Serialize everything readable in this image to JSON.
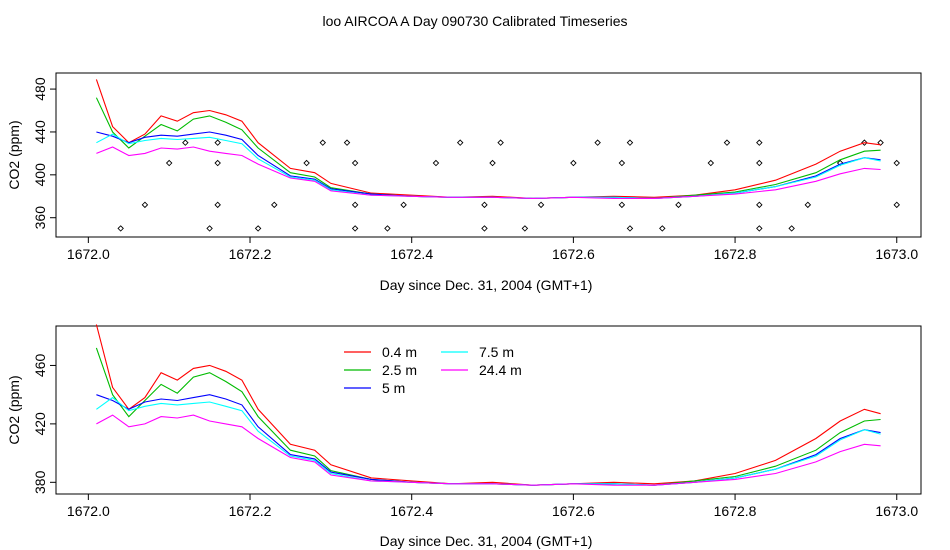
{
  "chart_data": [
    {
      "type": "line",
      "title": "loo AIRCOA A  Day 090730  Calibrated Timeseries",
      "xlabel": "Day since Dec. 31, 2004 (GMT+1)",
      "ylabel": "CO2 (ppm)",
      "xlim": [
        1671.96,
        1673.03
      ],
      "ylim": [
        342,
        495
      ],
      "xticks": [
        1672.0,
        1672.2,
        1672.4,
        1672.6,
        1672.8,
        1673.0
      ],
      "xtick_labels": [
        "1672.0",
        "1672.2",
        "1672.4",
        "1672.6",
        "1672.8",
        "1673.0"
      ],
      "yticks": [
        360,
        400,
        440,
        480
      ],
      "ytick_labels": [
        "360",
        "400",
        "440",
        "480"
      ],
      "colors": {
        "0.4 m": "#ff0000",
        "2.5 m": "#00bb00",
        "5 m": "#0000ff",
        "7.5 m": "#00ffff",
        "24.4 m": "#ff00ff"
      },
      "x": [
        1672.01,
        1672.03,
        1672.05,
        1672.07,
        1672.09,
        1672.11,
        1672.13,
        1672.15,
        1672.17,
        1672.19,
        1672.21,
        1672.25,
        1672.28,
        1672.3,
        1672.35,
        1672.4,
        1672.45,
        1672.5,
        1672.55,
        1672.6,
        1672.65,
        1672.7,
        1672.75,
        1672.8,
        1672.85,
        1672.9,
        1672.93,
        1672.96,
        1672.98
      ],
      "series": [
        {
          "name": "0.4 m",
          "color": "#ff0000",
          "values": [
            489,
            445,
            430,
            438,
            455,
            450,
            458,
            460,
            456,
            450,
            430,
            406,
            402,
            392,
            383,
            381,
            379,
            380,
            378,
            379,
            380,
            379,
            381,
            386,
            395,
            410,
            422,
            430,
            428
          ]
        },
        {
          "name": "2.5 m",
          "color": "#00bb00",
          "values": [
            472,
            440,
            425,
            436,
            447,
            441,
            452,
            455,
            449,
            442,
            425,
            402,
            398,
            388,
            382,
            380,
            379,
            379,
            378,
            379,
            379,
            378,
            381,
            384,
            391,
            402,
            414,
            422,
            423
          ]
        },
        {
          "name": "5 m",
          "color": "#0000ff",
          "values": [
            440,
            436,
            430,
            435,
            437,
            436,
            438,
            440,
            437,
            433,
            418,
            399,
            396,
            387,
            382,
            380,
            379,
            379,
            378,
            379,
            379,
            378,
            380,
            383,
            389,
            399,
            410,
            416,
            414
          ]
        },
        {
          "name": "7.5 m",
          "color": "#00ffff",
          "values": [
            430,
            438,
            429,
            432,
            434,
            433,
            434,
            435,
            432,
            429,
            415,
            398,
            395,
            386,
            381,
            380,
            379,
            379,
            378,
            379,
            379,
            378,
            380,
            383,
            389,
            398,
            409,
            416,
            413
          ]
        },
        {
          "name": "24.4 m",
          "color": "#ff00ff",
          "values": [
            420,
            426,
            418,
            420,
            425,
            424,
            426,
            422,
            420,
            418,
            410,
            397,
            394,
            385,
            381,
            380,
            379,
            379,
            378,
            379,
            378,
            378,
            380,
            382,
            386,
            394,
            401,
            406,
            405
          ]
        }
      ],
      "markers": {
        "x": [
          1672.04,
          1672.07,
          1672.1,
          1672.12,
          1672.15,
          1672.16,
          1672.16,
          1672.16,
          1672.21,
          1672.23,
          1672.27,
          1672.29,
          1672.32,
          1672.33,
          1672.33,
          1672.33,
          1672.37,
          1672.39,
          1672.43,
          1672.46,
          1672.49,
          1672.49,
          1672.5,
          1672.51,
          1672.54,
          1672.56,
          1672.6,
          1672.63,
          1672.66,
          1672.66,
          1672.67,
          1672.67,
          1672.71,
          1672.73,
          1672.77,
          1672.79,
          1672.83,
          1672.83,
          1672.83,
          1672.83,
          1672.87,
          1672.89,
          1672.93,
          1672.96,
          1672.98,
          1673.0,
          1673.0
        ],
        "y": [
          350,
          372,
          411,
          430,
          350,
          411,
          430,
          372,
          350,
          372,
          411,
          430,
          430,
          411,
          372,
          350,
          350,
          372,
          411,
          430,
          350,
          372,
          411,
          430,
          350,
          372,
          411,
          430,
          411,
          372,
          430,
          350,
          350,
          372,
          411,
          430,
          350,
          372,
          411,
          430,
          350,
          372,
          411,
          430,
          430,
          411,
          372
        ]
      }
    },
    {
      "type": "line",
      "xlabel": "Day since Dec. 31, 2004 (GMT+1)",
      "ylabel": "CO2 (ppm)",
      "xlim": [
        1671.96,
        1673.03
      ],
      "ylim": [
        372,
        487
      ],
      "xticks": [
        1672.0,
        1672.2,
        1672.4,
        1672.6,
        1672.8,
        1673.0
      ],
      "xtick_labels": [
        "1672.0",
        "1672.2",
        "1672.4",
        "1672.6",
        "1672.8",
        "1673.0"
      ],
      "yticks": [
        380,
        420,
        460
      ],
      "ytick_labels": [
        "380",
        "420",
        "460"
      ],
      "legend": {
        "placement": "top-left-inside",
        "entries": [
          "0.4 m",
          "2.5 m",
          "5 m",
          "7.5 m",
          "24.4 m"
        ]
      },
      "x": [
        1672.01,
        1672.03,
        1672.05,
        1672.07,
        1672.09,
        1672.11,
        1672.13,
        1672.15,
        1672.17,
        1672.19,
        1672.21,
        1672.25,
        1672.28,
        1672.3,
        1672.35,
        1672.4,
        1672.45,
        1672.5,
        1672.55,
        1672.6,
        1672.65,
        1672.7,
        1672.75,
        1672.8,
        1672.85,
        1672.9,
        1672.93,
        1672.96,
        1672.98
      ],
      "series": [
        {
          "name": "0.4 m",
          "color": "#ff0000",
          "values": [
            488,
            445,
            430,
            438,
            455,
            450,
            458,
            460,
            456,
            450,
            430,
            406,
            402,
            392,
            383,
            381,
            379,
            380,
            378,
            379,
            380,
            379,
            381,
            386,
            395,
            410,
            422,
            430,
            427
          ]
        },
        {
          "name": "2.5 m",
          "color": "#00bb00",
          "values": [
            472,
            440,
            425,
            436,
            447,
            441,
            452,
            455,
            449,
            442,
            425,
            402,
            398,
            388,
            382,
            380,
            379,
            379,
            378,
            379,
            379,
            378,
            381,
            384,
            391,
            402,
            414,
            422,
            423
          ]
        },
        {
          "name": "5 m",
          "color": "#0000ff",
          "values": [
            440,
            436,
            430,
            435,
            437,
            436,
            438,
            440,
            437,
            433,
            418,
            399,
            396,
            387,
            382,
            380,
            379,
            379,
            378,
            379,
            379,
            378,
            380,
            383,
            389,
            399,
            410,
            416,
            414
          ]
        },
        {
          "name": "7.5 m",
          "color": "#00ffff",
          "values": [
            430,
            438,
            429,
            432,
            434,
            433,
            434,
            435,
            432,
            429,
            415,
            398,
            395,
            386,
            381,
            380,
            379,
            379,
            378,
            379,
            379,
            378,
            380,
            383,
            389,
            398,
            409,
            416,
            413
          ]
        },
        {
          "name": "24.4 m",
          "color": "#ff00ff",
          "values": [
            420,
            426,
            418,
            420,
            425,
            424,
            426,
            422,
            420,
            418,
            410,
            397,
            394,
            385,
            381,
            380,
            379,
            379,
            378,
            379,
            378,
            378,
            380,
            382,
            386,
            394,
            401,
            406,
            405
          ]
        }
      ]
    }
  ]
}
